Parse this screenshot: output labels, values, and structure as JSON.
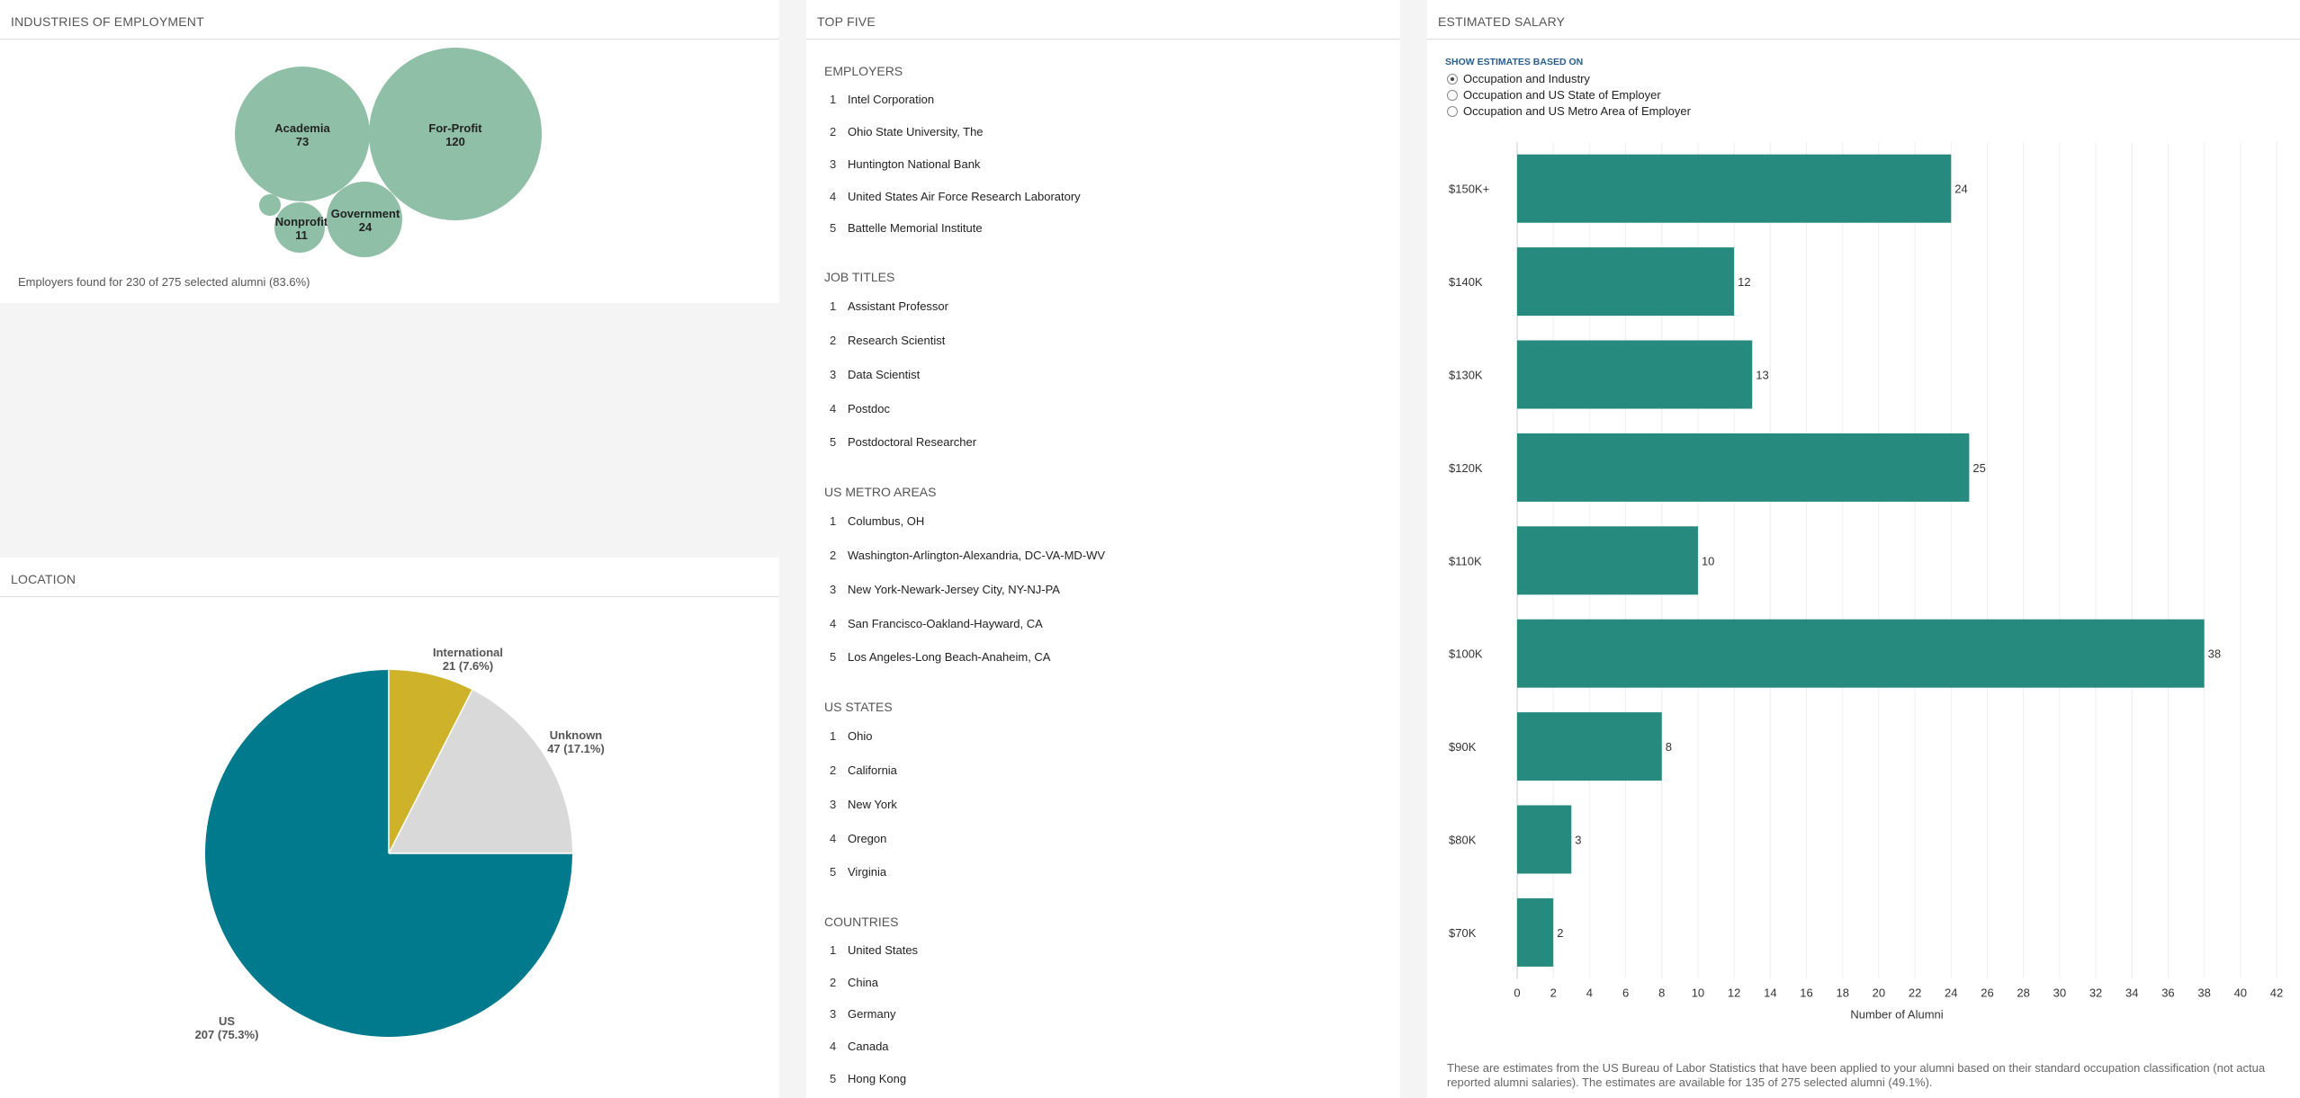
{
  "industries": {
    "title": "INDUSTRIES OF EMPLOYMENT",
    "bubbles": [
      {
        "label": "Academia",
        "value": "73"
      },
      {
        "label": "For-Profit",
        "value": "120"
      },
      {
        "label": "Nonprofit",
        "value": "11"
      },
      {
        "label": "Government",
        "value": "24"
      }
    ],
    "footnote": "Employers found for 230 of 275 selected alumni (83.6%)",
    "bubble_color": "#8fbfa6"
  },
  "location": {
    "title": "LOCATION",
    "slices": [
      {
        "name": "International",
        "label": "21 (7.6%)",
        "value": 21,
        "color": "#cdb22a"
      },
      {
        "name": "Unknown",
        "label": "47 (17.1%)",
        "value": 47,
        "color": "#d9d9d9"
      },
      {
        "name": "US",
        "label": "207 (75.3%)",
        "value": 207,
        "color": "#007a8c"
      }
    ]
  },
  "top_five": {
    "title": "TOP FIVE",
    "sections": [
      {
        "heading": "EMPLOYERS",
        "items": [
          "Intel Corporation",
          "Ohio State University, The",
          "Huntington National Bank",
          "United States Air Force Research Laboratory",
          "Battelle Memorial Institute"
        ]
      },
      {
        "heading": "JOB TITLES",
        "items": [
          "Assistant Professor",
          "Research Scientist",
          "Data Scientist",
          "Postdoc",
          "Postdoctoral Researcher"
        ]
      },
      {
        "heading": "US METRO AREAS",
        "items": [
          "Columbus, OH",
          "Washington-Arlington-Alexandria, DC-VA-MD-WV",
          "New York-Newark-Jersey City, NY-NJ-PA",
          "San Francisco-Oakland-Hayward, CA",
          "Los Angeles-Long Beach-Anaheim, CA"
        ]
      },
      {
        "heading": "US STATES",
        "items": [
          "Ohio",
          "California",
          "New York",
          "Oregon",
          "Virginia"
        ]
      },
      {
        "heading": "COUNTRIES",
        "items": [
          "United States",
          "China",
          "Germany",
          "Canada",
          "Hong Kong"
        ]
      }
    ],
    "rank_numbers": [
      "1",
      "2",
      "3",
      "4",
      "5"
    ]
  },
  "salary": {
    "title": "ESTIMATED SALARY",
    "show_heading": "SHOW ESTIMATES BASED ON",
    "options": [
      "Occupation and Industry",
      "Occupation and US State of Employer",
      "Occupation and US Metro Area of Employer"
    ],
    "selected_option": "Occupation and Industry",
    "note": "These are estimates from the US Bureau of Labor Statistics that have been applied to your alumni based on their standard occupation classification (not actua reported alumni salaries). The estimates are available for 135 of 275 selected alumni (49.1%).",
    "bar_color": "#268a7e"
  },
  "chart_data": [
    {
      "type": "bubble",
      "title": "INDUSTRIES OF EMPLOYMENT",
      "categories": [
        "Academia",
        "For-Profit",
        "Nonprofit",
        "Government"
      ],
      "values": [
        73,
        120,
        11,
        24
      ]
    },
    {
      "type": "pie",
      "title": "LOCATION",
      "categories": [
        "International",
        "Unknown",
        "US"
      ],
      "values": [
        21,
        47,
        207
      ]
    },
    {
      "type": "bar",
      "orientation": "horizontal",
      "title": "ESTIMATED SALARY",
      "categories": [
        "$150K+",
        "$140K",
        "$130K",
        "$120K",
        "$110K",
        "$100K",
        "$90K",
        "$80K",
        "$70K"
      ],
      "values": [
        24,
        12,
        13,
        25,
        10,
        38,
        8,
        3,
        2
      ],
      "xlabel": "Number of Alumni",
      "xlim": [
        0,
        42
      ],
      "xticks": [
        "0",
        "2",
        "4",
        "6",
        "8",
        "10",
        "12",
        "14",
        "16",
        "18",
        "20",
        "22",
        "24",
        "26",
        "28",
        "30",
        "32",
        "34",
        "36",
        "38",
        "40",
        "42"
      ],
      "grid": true
    }
  ]
}
